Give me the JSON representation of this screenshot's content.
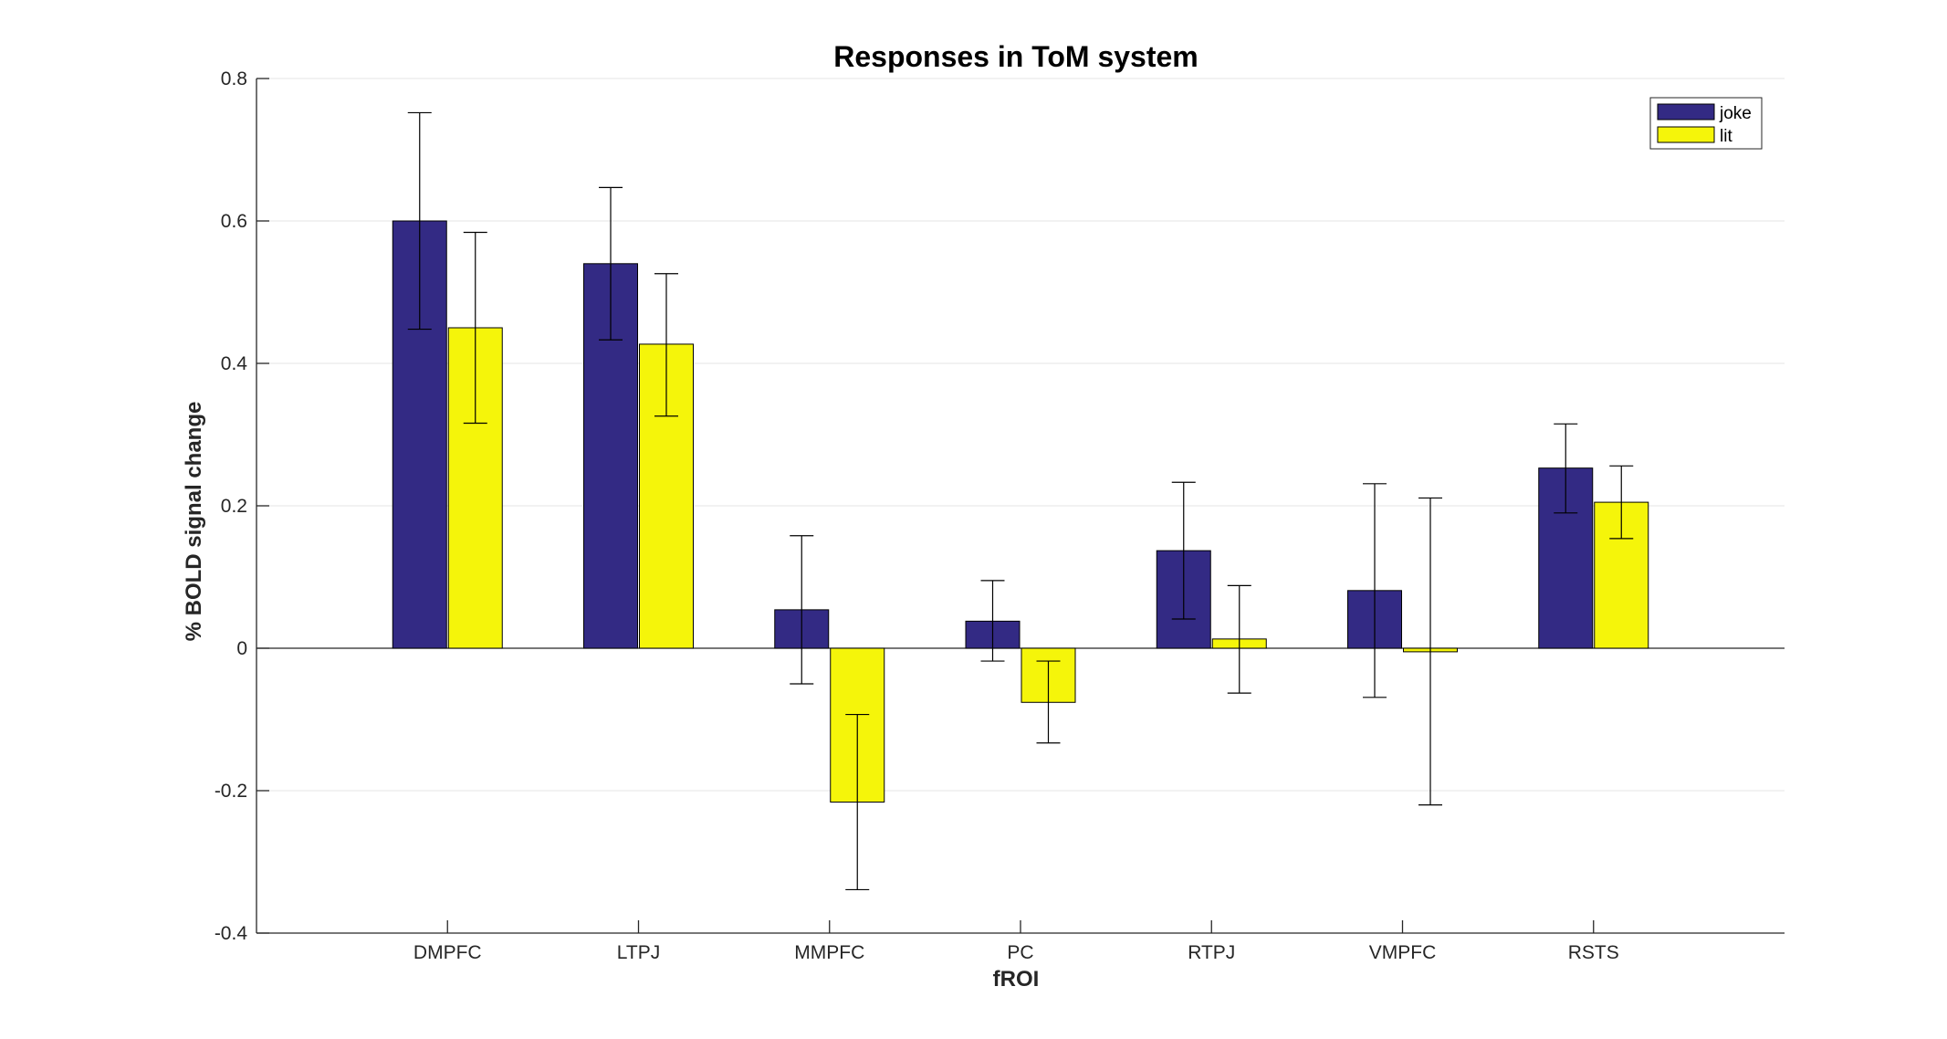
{
  "chart_data": {
    "type": "bar",
    "title": "Responses in ToM system",
    "xlabel": "fROI",
    "ylabel": "% BOLD signal change",
    "categories": [
      "DMPFC",
      "LTPJ",
      "MMPFC",
      "PC",
      "RTPJ",
      "VMPFC",
      "RSTS"
    ],
    "ylim": [
      -0.4,
      0.8
    ],
    "yticks": [
      -0.4,
      -0.2,
      0,
      0.2,
      0.4,
      0.6,
      0.8
    ],
    "ytick_labels": [
      "-0.4",
      "-0.2",
      "0",
      "0.2",
      "0.4",
      "0.6",
      "0.8"
    ],
    "grid": true,
    "legend_position": "top-right",
    "series": [
      {
        "name": "joke",
        "color": "#332a84",
        "values": [
          0.6,
          0.54,
          0.054,
          0.038,
          0.137,
          0.081,
          0.253
        ],
        "error_low": [
          0.448,
          0.433,
          -0.05,
          -0.018,
          0.041,
          -0.069,
          0.19
        ],
        "error_high": [
          0.752,
          0.647,
          0.158,
          0.095,
          0.233,
          0.231,
          0.315
        ]
      },
      {
        "name": "lit",
        "color": "#f5f50a",
        "values": [
          0.45,
          0.427,
          -0.216,
          -0.076,
          0.013,
          -0.005,
          0.205
        ],
        "error_low": [
          0.316,
          0.326,
          -0.339,
          -0.133,
          -0.063,
          -0.22,
          0.154
        ],
        "error_high": [
          0.584,
          0.526,
          -0.093,
          -0.018,
          0.088,
          0.211,
          0.256
        ]
      }
    ]
  }
}
